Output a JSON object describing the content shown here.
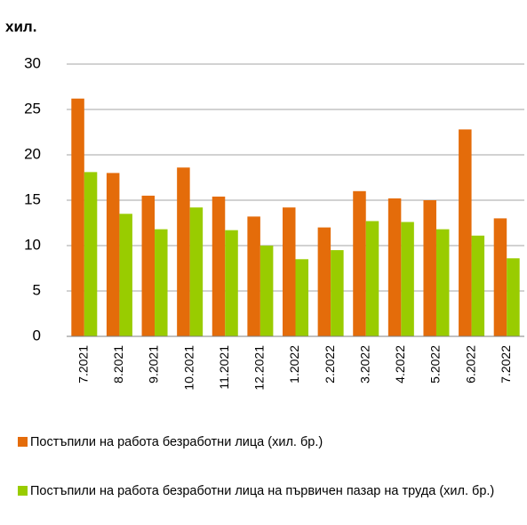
{
  "chart_data": {
    "type": "bar",
    "y_label": "хил.",
    "categories": [
      "7.2021",
      "8.2021",
      "9.2021",
      "10.2021",
      "11.2021",
      "12.2021",
      "1.2022",
      "2.2022",
      "3.2022",
      "4.2022",
      "5.2022",
      "6.2022",
      "7.2022"
    ],
    "series": [
      {
        "name": "Постъпили на работа безработни лица  (хил. бр.)",
        "color": "#e46c0a",
        "values": [
          26.2,
          18,
          15.5,
          18.6,
          15.4,
          13.2,
          14.2,
          12,
          16,
          15.2,
          15,
          22.8,
          13
        ]
      },
      {
        "name": "Постъпили на работа безработни лица на първичен пазар на труда  (хил. бр.)",
        "color": "#99cc00",
        "values": [
          18.1,
          13.5,
          11.8,
          14.2,
          11.7,
          10,
          8.5,
          9.5,
          12.7,
          12.6,
          11.8,
          11.1,
          8.6
        ]
      }
    ],
    "ylim": [
      0,
      30
    ],
    "yticks": [
      0,
      5,
      10,
      15,
      20,
      25,
      30
    ],
    "grid": true,
    "legend": "bottom"
  }
}
